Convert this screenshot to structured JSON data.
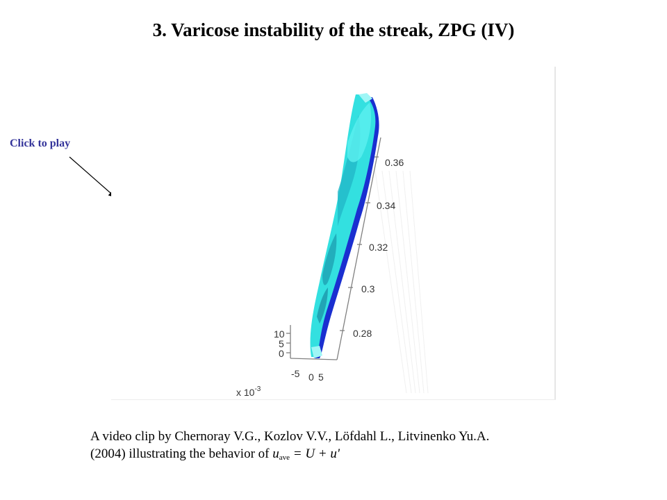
{
  "slide": {
    "title": "3. Varicose instability of the streak, ZPG (IV)"
  },
  "play_hint": {
    "label": "Click to play"
  },
  "video": {
    "z_ticks": [
      "0.36",
      "0.34",
      "0.32",
      "0.3",
      "0.28"
    ],
    "y_ticks": [
      "10",
      "5",
      "0"
    ],
    "x_ticks": [
      "-5",
      "0",
      "5"
    ],
    "x_multiplier_base": "x 10",
    "x_multiplier_exp": "-3",
    "colors": {
      "surface": "#33e0e0",
      "core": "#1a2fd0",
      "axis": "#808080"
    }
  },
  "caption": {
    "line1": "A video clip by Chernoray V.G., Kozlov V.V., Löfdahl L., Litvinenko Yu.A.",
    "line2_prefix": "(2004) illustrating the behavior of ",
    "var_u": "u",
    "var_sub": "ave",
    "equation": " = U + u'"
  }
}
